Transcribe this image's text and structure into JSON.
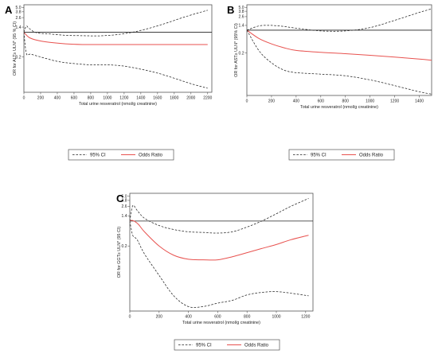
{
  "figure": {
    "background": "#ffffff"
  },
  "colors": {
    "ci": "#222222",
    "or": "#e8524f",
    "ref": "#222222",
    "box": "#555555"
  },
  "chart_data": [
    {
      "panel": "A",
      "type": "line",
      "xlabel": "Total urine resveratrol (nmol/g creatinine)",
      "ylabel": "OR for ALT≥ ULN* (95 % CI)",
      "xlim": [
        0,
        2250
      ],
      "ylim": [
        0.02,
        6.0
      ],
      "yscale": "log",
      "xticks": [
        0,
        200,
        400,
        600,
        800,
        1000,
        1200,
        1400,
        1600,
        1800,
        2000,
        2200
      ],
      "yticks": [
        0.2,
        1.4,
        2.6,
        3.8,
        5.0
      ],
      "ytick_labels": [
        "0.2",
        "1.4",
        "2.6",
        "3.8",
        "5.0"
      ],
      "reference_y": 1.0,
      "series": [
        {
          "name": "Odds Ratio",
          "style": "solid",
          "x": [
            0,
            60,
            150,
            300,
            500,
            700,
            900,
            1200,
            1600,
            2000,
            2200
          ],
          "y": [
            1.0,
            0.72,
            0.6,
            0.52,
            0.47,
            0.45,
            0.45,
            0.45,
            0.45,
            0.45,
            0.45
          ]
        },
        {
          "name": "95% CI",
          "style": "dashed",
          "x": [
            0,
            30,
            60,
            150,
            300,
            500,
            700,
            900,
            1100,
            1300,
            1500,
            1700,
            1900,
            2100,
            2200
          ],
          "y": [
            1.0,
            1.5,
            1.3,
            0.97,
            0.9,
            0.82,
            0.8,
            0.79,
            0.85,
            1.0,
            1.3,
            1.8,
            2.6,
            3.6,
            4.2
          ]
        },
        {
          "name": "",
          "style": "dashed",
          "x": [
            0,
            30,
            80,
            200,
            400,
            600,
            800,
            1000,
            1200,
            1400,
            1600,
            1800,
            2000,
            2200
          ],
          "y": [
            1.0,
            0.25,
            0.24,
            0.2,
            0.15,
            0.13,
            0.12,
            0.12,
            0.11,
            0.09,
            0.07,
            0.05,
            0.035,
            0.026
          ]
        }
      ],
      "legend": [
        "95% CI",
        "Odds Ratio"
      ]
    },
    {
      "panel": "B",
      "type": "line",
      "xlabel": "Total urine resveratrol (nmol/g creatinine)",
      "ylabel": "OR for AST≥ ULN* (95% CI)",
      "xlim": [
        0,
        1500
      ],
      "ylim": [
        0.01,
        6.0
      ],
      "yscale": "log",
      "xticks": [
        0,
        200,
        400,
        600,
        800,
        1000,
        1200,
        1400
      ],
      "yticks": [
        0.2,
        1.4,
        2.6,
        3.8,
        5.0
      ],
      "ytick_labels": [
        "0.2",
        "1.4",
        "2.6",
        "3.8",
        "5.0"
      ],
      "reference_y": 1.0,
      "series": [
        {
          "name": "Odds Ratio",
          "style": "solid",
          "x": [
            0,
            100,
            200,
            300,
            400,
            600,
            800,
            1000,
            1200,
            1400,
            1500
          ],
          "y": [
            1.0,
            0.55,
            0.38,
            0.29,
            0.24,
            0.21,
            0.19,
            0.17,
            0.15,
            0.13,
            0.12
          ]
        },
        {
          "name": "95% CI",
          "style": "dashed",
          "x": [
            0,
            100,
            200,
            300,
            400,
            600,
            800,
            1000,
            1200,
            1400,
            1500
          ],
          "y": [
            1.0,
            1.35,
            1.4,
            1.3,
            1.15,
            0.95,
            0.95,
            1.2,
            2.0,
            3.5,
            4.5
          ]
        },
        {
          "name": "",
          "style": "dashed",
          "x": [
            0,
            100,
            200,
            300,
            400,
            600,
            800,
            1000,
            1200,
            1400,
            1500
          ],
          "y": [
            1.0,
            0.23,
            0.1,
            0.06,
            0.05,
            0.045,
            0.04,
            0.03,
            0.02,
            0.013,
            0.011
          ]
        }
      ],
      "legend": [
        "95% CI",
        "Odds Ratio"
      ]
    },
    {
      "panel": "C",
      "type": "line",
      "xlabel": "Total urine resveratrol (nmol/g creatinine)",
      "ylabel": "OR for GGT≥ ULN* (95 CI)",
      "xlim": [
        0,
        1250
      ],
      "ylim": [
        0.003,
        6.0
      ],
      "yscale": "log",
      "xticks": [
        0,
        200,
        400,
        600,
        800,
        1000,
        1200
      ],
      "yticks": [
        0.2,
        1.4,
        2.6,
        3.8,
        5.0
      ],
      "ytick_labels": [
        "0.2",
        "1.4",
        "2.6",
        "3.8",
        "5.0"
      ],
      "reference_y": 1.0,
      "series": [
        {
          "name": "Odds Ratio",
          "style": "solid",
          "x": [
            0,
            10,
            30,
            60,
            100,
            200,
            300,
            400,
            500,
            600,
            700,
            800,
            900,
            1000,
            1100,
            1220
          ],
          "y": [
            1.0,
            1.05,
            1.0,
            0.8,
            0.5,
            0.2,
            0.11,
            0.085,
            0.082,
            0.082,
            0.1,
            0.13,
            0.17,
            0.22,
            0.3,
            0.4
          ]
        },
        {
          "name": "95% CI",
          "style": "dashed",
          "x": [
            0,
            20,
            50,
            100,
            200,
            300,
            400,
            500,
            600,
            700,
            800,
            900,
            1000,
            1100,
            1220
          ],
          "y": [
            1.0,
            2.7,
            2.0,
            1.2,
            0.75,
            0.58,
            0.5,
            0.48,
            0.46,
            0.5,
            0.68,
            1.0,
            1.6,
            2.6,
            4.3
          ]
        },
        {
          "name": "",
          "style": "dashed",
          "x": [
            0,
            20,
            50,
            100,
            200,
            300,
            400,
            500,
            600,
            700,
            800,
            900,
            1000,
            1100,
            1220
          ],
          "y": [
            1.0,
            0.4,
            0.3,
            0.12,
            0.03,
            0.008,
            0.004,
            0.004,
            0.005,
            0.006,
            0.0085,
            0.01,
            0.0105,
            0.0095,
            0.008
          ]
        }
      ],
      "legend": [
        "95% CI",
        "Odds Ratio"
      ]
    }
  ]
}
